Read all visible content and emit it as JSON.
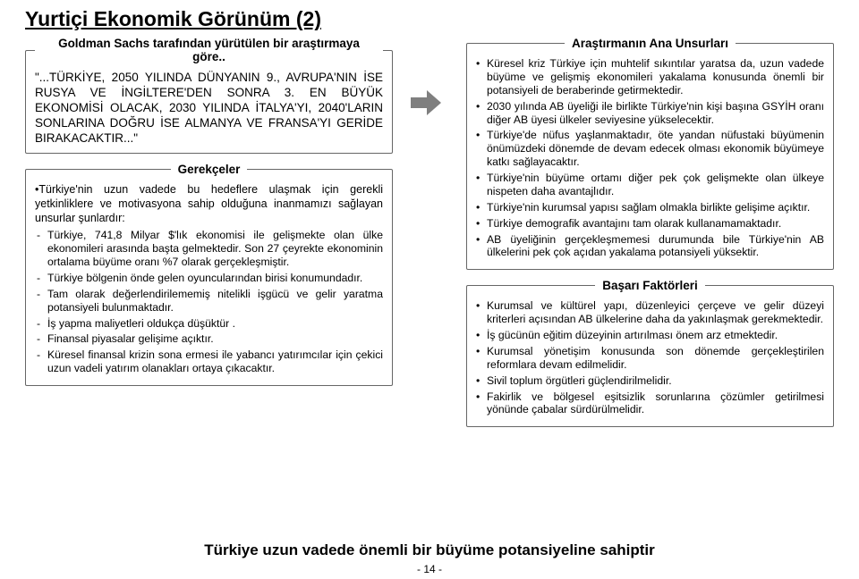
{
  "title": "Yurtiçi Ekonomik Görünüm (2)",
  "left": {
    "box1": {
      "legend": "Goldman Sachs tarafından yürütülen bir araştırmaya göre..",
      "quote": "\"...TÜRKİYE, 2050 YILINDA DÜNYANIN 9., AVRUPA'NIN İSE RUSYA VE İNGİLTERE'DEN SONRA 3. EN BÜYÜK EKONOMİSİ OLACAK, 2030 YILINDA İTALYA'YI, 2040'LARIN SONLARINA DOĞRU İSE ALMANYA VE FRANSA'YI GERİDE BIRAKACAKTIR...\""
    },
    "box2": {
      "legend": "Gerekçeler",
      "lead": "•Türkiye'nin uzun vadede bu hedeflere ulaşmak için gerekli yetkinliklere ve motivasyona sahip olduğuna inanmamızı sağlayan unsurlar şunlardır:",
      "items": [
        "Türkiye, 741,8 Milyar $'lık ekonomisi ile gelişmekte olan ülke ekonomileri arasında başta gelmektedir. Son 27 çeyrekte ekonominin ortalama büyüme oranı %7 olarak gerçekleşmiştir.",
        "Türkiye bölgenin önde gelen oyuncularından birisi konumundadır.",
        "Tam olarak değerlendirilememiş nitelikli işgücü ve gelir yaratma potansiyeli bulunmaktadır.",
        "İş yapma maliyetleri oldukça düşüktür .",
        "Finansal piyasalar gelişime açıktır.",
        "Küresel finansal krizin sona ermesi ile yabancı yatırımcılar için çekici uzun vadeli yatırım olanakları ortaya çıkacaktır."
      ]
    }
  },
  "right": {
    "box1": {
      "legend": "Araştırmanın Ana Unsurları",
      "items": [
        "Küresel kriz Türkiye için muhtelif sıkıntılar yaratsa da, uzun vadede büyüme ve gelişmiş ekonomileri yakalama konusunda önemli bir potansiyeli de beraberinde getirmektedir.",
        "2030 yılında AB üyeliği ile birlikte Türkiye'nin kişi başına GSYİH oranı diğer AB üyesi ülkeler seviyesine yükselecektir.",
        "Türkiye'de nüfus yaşlanmaktadır, öte yandan nüfustaki büyümenin önümüzdeki dönemde de devam edecek olması ekonomik büyümeye katkı sağlayacaktır.",
        "Türkiye'nin büyüme ortamı diğer pek çok gelişmekte olan ülkeye nispeten daha avantajlıdır.",
        "Türkiye'nin kurumsal yapısı sağlam olmakla birlikte gelişime açıktır.",
        "Türkiye demografik avantajını tam olarak kullanamamaktadır.",
        "AB üyeliğinin gerçekleşmemesi durumunda bile Türkiye'nin AB ülkelerini pek çok açıdan yakalama potansiyeli yüksektir."
      ]
    },
    "box2": {
      "legend": "Başarı Faktörleri",
      "items": [
        "Kurumsal ve kültürel yapı, düzenleyici çerçeve ve gelir düzeyi kriterleri açısından AB ülkelerine daha da yakınlaşmak gerekmektedir.",
        "İş gücünün eğitim düzeyinin artırılması önem arz etmektedir.",
        "Kurumsal yönetişim konusunda son dönemde gerçekleştirilen reformlara devam edilmelidir.",
        "Sivil toplum örgütleri güçlendirilmelidir.",
        "Fakirlik ve bölgesel eşitsizlik sorunlarına çözümler getirilmesi yönünde çabalar sürdürülmelidir."
      ]
    }
  },
  "footer": {
    "statement": "Türkiye uzun vadede önemli bir büyüme potansiyeline sahiptir",
    "page": "- 14 -"
  },
  "style": {
    "arrow_color": "#7f7f7f"
  }
}
